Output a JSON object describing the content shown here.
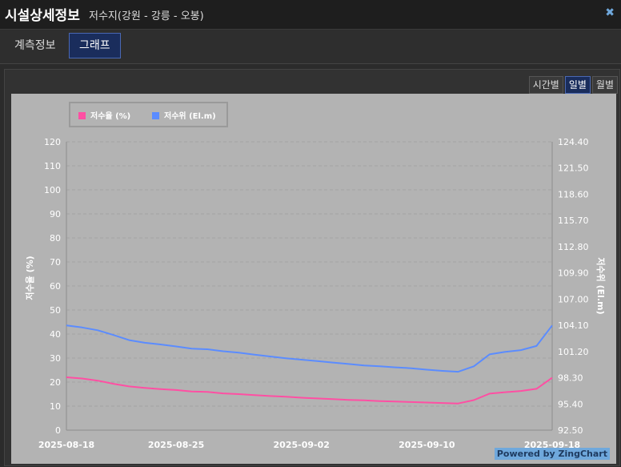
{
  "header": {
    "title": "시설상세정보",
    "subtitle": "저수지(강원 - 강릉 - 오봉)",
    "close_icon": "close-icon"
  },
  "tabs": [
    {
      "label": "계측정보",
      "active": false
    },
    {
      "label": "그래프",
      "active": true
    }
  ],
  "range_buttons": [
    {
      "label": "시간별",
      "active": false
    },
    {
      "label": "일별",
      "active": true
    },
    {
      "label": "월별",
      "active": false
    }
  ],
  "chart": {
    "legend": [
      {
        "label": "저수율 (%)",
        "color": "#ff4fa3"
      },
      {
        "label": "저수위 (El.m)",
        "color": "#5b8cff"
      }
    ],
    "y_left_label": "저수율 (%)",
    "y_right_label": "저수위 (El.m)",
    "y_left_ticks": [
      "0",
      "10",
      "20",
      "30",
      "40",
      "50",
      "60",
      "70",
      "80",
      "90",
      "100",
      "110",
      "120"
    ],
    "y_right_ticks": [
      "92.50",
      "95.40",
      "98.30",
      "101.20",
      "104.10",
      "107.00",
      "109.90",
      "112.80",
      "115.70",
      "118.60",
      "121.50",
      "124.40"
    ],
    "x_tick_labels": [
      "2025-08-18",
      "2025-08-25",
      "2025-09-02",
      "2025-09-10",
      "2025-09-18"
    ],
    "powered_by": "Powered by ZingChart"
  },
  "chart_data": {
    "type": "line",
    "x": [
      "2025-08-18",
      "2025-08-19",
      "2025-08-20",
      "2025-08-21",
      "2025-08-22",
      "2025-08-23",
      "2025-08-24",
      "2025-08-25",
      "2025-08-26",
      "2025-08-27",
      "2025-08-28",
      "2025-08-29",
      "2025-08-30",
      "2025-08-31",
      "2025-09-01",
      "2025-09-02",
      "2025-09-03",
      "2025-09-04",
      "2025-09-05",
      "2025-09-06",
      "2025-09-07",
      "2025-09-08",
      "2025-09-09",
      "2025-09-10",
      "2025-09-11",
      "2025-09-12",
      "2025-09-13",
      "2025-09-14",
      "2025-09-15",
      "2025-09-16",
      "2025-09-17",
      "2025-09-18"
    ],
    "series": [
      {
        "name": "저수율 (%)",
        "axis": "left",
        "color": "#ff4fa3",
        "values": [
          22.0,
          21.5,
          20.6,
          19.3,
          18.2,
          17.6,
          17.1,
          16.7,
          16.1,
          15.9,
          15.3,
          15.0,
          14.6,
          14.2,
          13.9,
          13.5,
          13.2,
          12.9,
          12.6,
          12.4,
          12.1,
          11.9,
          11.7,
          11.5,
          11.3,
          11.1,
          12.5,
          15.2,
          15.8,
          16.3,
          17.2,
          21.8
        ]
      },
      {
        "name": "저수위 (El.m)",
        "axis": "right",
        "color": "#5b8cff",
        "values": [
          104.08,
          103.86,
          103.55,
          103.03,
          102.46,
          102.17,
          101.98,
          101.76,
          101.51,
          101.45,
          101.23,
          101.07,
          100.86,
          100.65,
          100.46,
          100.3,
          100.14,
          99.98,
          99.82,
          99.66,
          99.57,
          99.45,
          99.35,
          99.19,
          99.06,
          98.96,
          99.56,
          100.88,
          101.16,
          101.35,
          101.81,
          104.08
        ]
      }
    ],
    "ylim_left": [
      0,
      120
    ],
    "ylim_right": [
      92.5,
      124.4
    ],
    "ylabel_left": "저수율 (%)",
    "ylabel_right": "저수위 (El.m)",
    "grid": true,
    "legend_position": "top-left"
  }
}
